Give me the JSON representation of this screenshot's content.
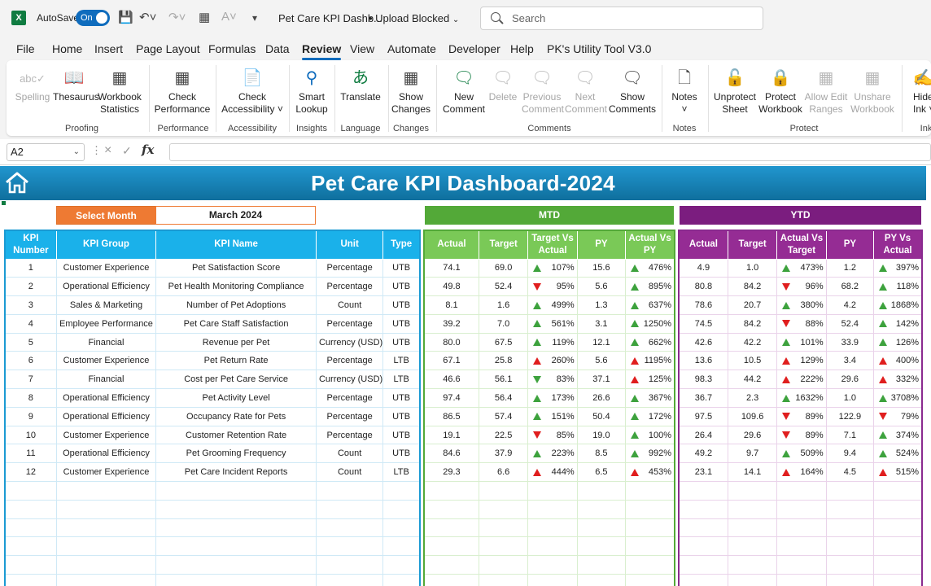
{
  "titlebar": {
    "autosave_label": "AutoSave",
    "autosave_state": "On",
    "doc_title": "Pet Care KPI Dashb...",
    "upload_status": "• Upload Blocked",
    "search_placeholder": "Search"
  },
  "tabs": [
    "File",
    "Home",
    "Insert",
    "Page Layout",
    "Formulas",
    "Data",
    "Review",
    "View",
    "Automate",
    "Developer",
    "Help",
    "PK's Utility Tool V3.0"
  ],
  "active_tab": "Review",
  "ribbon": {
    "buttons": {
      "spelling": "Spelling",
      "thesaurus": "Thesaurus",
      "workbook_stats_1": "Workbook",
      "workbook_stats_2": "Statistics",
      "check_perf_1": "Check",
      "check_perf_2": "Performance",
      "check_access_1": "Check",
      "check_access_2": "Accessibility ˅",
      "smart_lookup_1": "Smart",
      "smart_lookup_2": "Lookup",
      "translate": "Translate",
      "show_changes_1": "Show",
      "show_changes_2": "Changes",
      "new_comment_1": "New",
      "new_comment_2": "Comment",
      "delete": "Delete",
      "previous_comment_1": "Previous",
      "previous_comment_2": "Comment",
      "next_comment_1": "Next",
      "next_comment_2": "Comment",
      "show_comments_1": "Show",
      "show_comments_2": "Comments",
      "notes": "Notes",
      "notes_caret": "˅",
      "unprotect_sheet_1": "Unprotect",
      "unprotect_sheet_2": "Sheet",
      "protect_workbook_1": "Protect",
      "protect_workbook_2": "Workbook",
      "allow_edit_1": "Allow Edit",
      "allow_edit_2": "Ranges",
      "unshare_1": "Unshare",
      "unshare_2": "Workbook",
      "hide_ink_1": "Hide",
      "hide_ink_2": "Ink ˅"
    },
    "groups": {
      "proofing": "Proofing",
      "performance": "Performance",
      "accessibility": "Accessibility",
      "insights": "Insights",
      "language": "Language",
      "changes": "Changes",
      "comments": "Comments",
      "notes": "Notes",
      "protect": "Protect",
      "ink": "Ink"
    }
  },
  "formula_bar": {
    "name_box": "A2",
    "fx": "fx",
    "formula": ""
  },
  "dashboard": {
    "title": "Pet Care KPI Dashboard-2024",
    "select_month_label": "Select Month",
    "selected_month": "March 2024",
    "mtd_label": "MTD",
    "ytd_label": "YTD",
    "headers": {
      "kpi_number": "KPI Number",
      "kpi_group": "KPI Group",
      "kpi_name": "KPI Name",
      "unit": "Unit",
      "type": "Type",
      "actual": "Actual",
      "target": "Target",
      "target_vs_actual": "Target Vs Actual",
      "py": "PY",
      "actual_vs_py": "Actual Vs PY",
      "actual_vs_target": "Actual Vs Target",
      "py_vs_actual": "PY Vs Actual"
    },
    "rows": [
      {
        "n": "1",
        "group": "Customer Experience",
        "name": "Pet Satisfaction Score",
        "unit": "Percentage",
        "type": "UTB",
        "mtd": {
          "actual": "74.1",
          "target": "69.0",
          "tva": "107%",
          "tva_dir": "up",
          "py": "15.6",
          "avp": "476%",
          "avp_dir": "up"
        },
        "ytd": {
          "actual": "4.9",
          "target": "1.0",
          "avt": "473%",
          "avt_dir": "up",
          "py": "1.2",
          "pva": "397%",
          "pva_dir": "up"
        }
      },
      {
        "n": "2",
        "group": "Operational Efficiency",
        "name": "Pet Health Monitoring Compliance",
        "unit": "Percentage",
        "type": "UTB",
        "mtd": {
          "actual": "49.8",
          "target": "52.4",
          "tva": "95%",
          "tva_dir": "down",
          "py": "5.6",
          "avp": "895%",
          "avp_dir": "up"
        },
        "ytd": {
          "actual": "80.8",
          "target": "84.2",
          "avt": "96%",
          "avt_dir": "down",
          "py": "68.2",
          "pva": "118%",
          "pva_dir": "up"
        }
      },
      {
        "n": "3",
        "group": "Sales & Marketing",
        "name": "Number of Pet Adoptions",
        "unit": "Count",
        "type": "UTB",
        "mtd": {
          "actual": "8.1",
          "target": "1.6",
          "tva": "499%",
          "tva_dir": "up",
          "py": "1.3",
          "avp": "637%",
          "avp_dir": "up"
        },
        "ytd": {
          "actual": "78.6",
          "target": "20.7",
          "avt": "380%",
          "avt_dir": "up",
          "py": "4.2",
          "pva": "1868%",
          "pva_dir": "up"
        }
      },
      {
        "n": "4",
        "group": "Employee Performance",
        "name": "Pet Care Staff Satisfaction",
        "unit": "Percentage",
        "type": "UTB",
        "mtd": {
          "actual": "39.2",
          "target": "7.0",
          "tva": "561%",
          "tva_dir": "up",
          "py": "3.1",
          "avp": "1250%",
          "avp_dir": "up"
        },
        "ytd": {
          "actual": "74.5",
          "target": "84.2",
          "avt": "88%",
          "avt_dir": "down",
          "py": "52.4",
          "pva": "142%",
          "pva_dir": "up"
        }
      },
      {
        "n": "5",
        "group": "Financial",
        "name": "Revenue per Pet",
        "unit": "Currency (USD)",
        "type": "UTB",
        "mtd": {
          "actual": "80.0",
          "target": "67.5",
          "tva": "119%",
          "tva_dir": "up",
          "py": "12.1",
          "avp": "662%",
          "avp_dir": "up"
        },
        "ytd": {
          "actual": "42.6",
          "target": "42.2",
          "avt": "101%",
          "avt_dir": "up",
          "py": "33.9",
          "pva": "126%",
          "pva_dir": "up"
        }
      },
      {
        "n": "6",
        "group": "Customer Experience",
        "name": "Pet Return Rate",
        "unit": "Percentage",
        "type": "LTB",
        "mtd": {
          "actual": "67.1",
          "target": "25.8",
          "tva": "260%",
          "tva_dir": "upred",
          "py": "5.6",
          "avp": "1195%",
          "avp_dir": "upred"
        },
        "ytd": {
          "actual": "13.6",
          "target": "10.5",
          "avt": "129%",
          "avt_dir": "upred",
          "py": "3.4",
          "pva": "400%",
          "pva_dir": "upred"
        }
      },
      {
        "n": "7",
        "group": "Financial",
        "name": "Cost per Pet Care Service",
        "unit": "Currency (USD)",
        "type": "LTB",
        "mtd": {
          "actual": "46.6",
          "target": "56.1",
          "tva": "83%",
          "tva_dir": "downgreen",
          "py": "37.1",
          "avp": "125%",
          "avp_dir": "upred"
        },
        "ytd": {
          "actual": "98.3",
          "target": "44.2",
          "avt": "222%",
          "avt_dir": "upred",
          "py": "29.6",
          "pva": "332%",
          "pva_dir": "upred"
        }
      },
      {
        "n": "8",
        "group": "Operational Efficiency",
        "name": "Pet Activity Level",
        "unit": "Percentage",
        "type": "UTB",
        "mtd": {
          "actual": "97.4",
          "target": "56.4",
          "tva": "173%",
          "tva_dir": "up",
          "py": "26.6",
          "avp": "367%",
          "avp_dir": "up"
        },
        "ytd": {
          "actual": "36.7",
          "target": "2.3",
          "avt": "1632%",
          "avt_dir": "up",
          "py": "1.0",
          "pva": "3708%",
          "pva_dir": "up"
        }
      },
      {
        "n": "9",
        "group": "Operational Efficiency",
        "name": "Occupancy Rate for Pets",
        "unit": "Percentage",
        "type": "UTB",
        "mtd": {
          "actual": "86.5",
          "target": "57.4",
          "tva": "151%",
          "tva_dir": "up",
          "py": "50.4",
          "avp": "172%",
          "avp_dir": "up"
        },
        "ytd": {
          "actual": "97.5",
          "target": "109.6",
          "avt": "89%",
          "avt_dir": "down",
          "py": "122.9",
          "pva": "79%",
          "pva_dir": "down"
        }
      },
      {
        "n": "10",
        "group": "Customer Experience",
        "name": "Customer Retention Rate",
        "unit": "Percentage",
        "type": "UTB",
        "mtd": {
          "actual": "19.1",
          "target": "22.5",
          "tva": "85%",
          "tva_dir": "down",
          "py": "19.0",
          "avp": "100%",
          "avp_dir": "up"
        },
        "ytd": {
          "actual": "26.4",
          "target": "29.6",
          "avt": "89%",
          "avt_dir": "down",
          "py": "7.1",
          "pva": "374%",
          "pva_dir": "up"
        }
      },
      {
        "n": "11",
        "group": "Operational Efficiency",
        "name": "Pet Grooming Frequency",
        "unit": "Count",
        "type": "UTB",
        "mtd": {
          "actual": "84.6",
          "target": "37.9",
          "tva": "223%",
          "tva_dir": "up",
          "py": "8.5",
          "avp": "992%",
          "avp_dir": "up"
        },
        "ytd": {
          "actual": "49.2",
          "target": "9.7",
          "avt": "509%",
          "avt_dir": "up",
          "py": "9.4",
          "pva": "524%",
          "pva_dir": "up"
        }
      },
      {
        "n": "12",
        "group": "Customer Experience",
        "name": "Pet Care Incident Reports",
        "unit": "Count",
        "type": "LTB",
        "mtd": {
          "actual": "29.3",
          "target": "6.6",
          "tva": "444%",
          "tva_dir": "upred",
          "py": "6.5",
          "avp": "453%",
          "avp_dir": "upred"
        },
        "ytd": {
          "actual": "23.1",
          "target": "14.1",
          "avt": "164%",
          "avt_dir": "upred",
          "py": "4.5",
          "pva": "515%",
          "pva_dir": "upred"
        }
      }
    ],
    "empty_rows": 6
  },
  "colors": {
    "excel_green": "#107c41",
    "banner_blue": "#1a8fc6",
    "kpi_header": "#1ab1ea",
    "mtd_green": "#53a938",
    "ytd_purple": "#7b1d7f",
    "select_orange": "#ee7a33",
    "up_green": "#3da23d",
    "down_red": "#e01e1e"
  }
}
